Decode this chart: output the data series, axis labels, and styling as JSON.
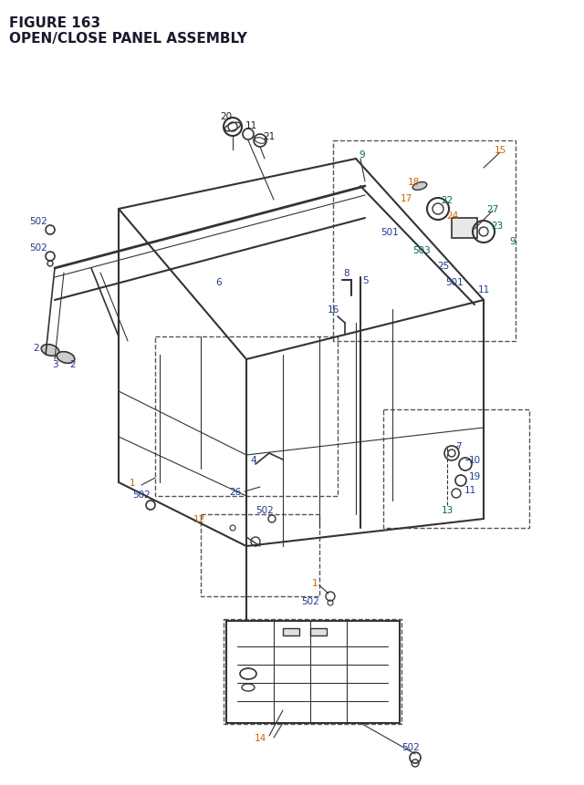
{
  "title_line1": "FIGURE 163",
  "title_line2": "OPEN/CLOSE PANEL ASSEMBLY",
  "bg_color": "#ffffff",
  "title_color": "#1a1a2e",
  "line_color": "#333333",
  "label_color": "#1a1a2e",
  "orange_color": "#cc6600",
  "blue_color": "#1a3a8a",
  "teal_color": "#006666",
  "dashed_color": "#555555"
}
